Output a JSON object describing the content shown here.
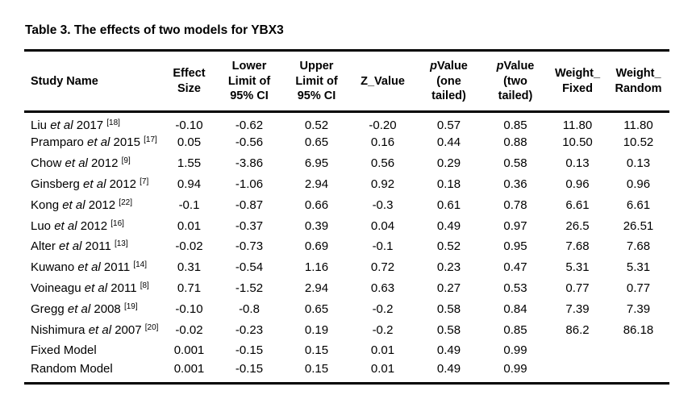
{
  "title": "Table 3. The effects of two models for YBX3",
  "colors": {
    "text": "#000000",
    "background": "#ffffff",
    "rule": "#000000"
  },
  "table": {
    "columns": [
      {
        "id": "study_name",
        "lines": [
          "Study Name"
        ],
        "align": "left"
      },
      {
        "id": "effect_size",
        "lines": [
          "Effect",
          "Size"
        ]
      },
      {
        "id": "lower_limit",
        "lines": [
          "Lower",
          "Limit of",
          "95% CI"
        ]
      },
      {
        "id": "upper_limit",
        "lines": [
          "Upper",
          "Limit of",
          "95% CI"
        ]
      },
      {
        "id": "z_value",
        "lines": [
          "Z_Value"
        ]
      },
      {
        "id": "p_one_tailed",
        "lines": [
          "pValue",
          "(one",
          "tailed)"
        ],
        "italic_lead": "p"
      },
      {
        "id": "p_two_tailed",
        "lines": [
          "pValue",
          "(two",
          "tailed)"
        ],
        "italic_lead": "p"
      },
      {
        "id": "weight_fixed",
        "lines": [
          "Weight_",
          "Fixed"
        ]
      },
      {
        "id": "weight_random",
        "lines": [
          "Weight_",
          "Random"
        ]
      }
    ],
    "rows": [
      {
        "study": {
          "name": "Liu",
          "etal": "et al",
          "year": "2017",
          "ref": "[18]"
        },
        "values": [
          "-0.10",
          "-0.62",
          "0.52",
          "-0.20",
          "0.57",
          "0.85",
          "11.80",
          "11.80"
        ]
      },
      {
        "study": {
          "name": "Pramparo",
          "etal": "et al",
          "year": "2015",
          "ref": "[17]"
        },
        "values": [
          "0.05",
          "-0.56",
          "0.65",
          "0.16",
          "0.44",
          "0.88",
          "10.50",
          "10.52"
        ]
      },
      {
        "study": {
          "name": "Chow",
          "etal": "et al",
          "year": "2012",
          "ref": "[9]"
        },
        "values": [
          "1.55",
          "-3.86",
          "6.95",
          "0.56",
          "0.29",
          "0.58",
          "0.13",
          "0.13"
        ]
      },
      {
        "study": {
          "name": "Ginsberg",
          "etal": "et al",
          "year": "2012",
          "ref": "[7]"
        },
        "values": [
          "0.94",
          "-1.06",
          "2.94",
          "0.92",
          "0.18",
          "0.36",
          "0.96",
          "0.96"
        ]
      },
      {
        "study": {
          "name": "Kong",
          "etal": "et al",
          "year": "2012",
          "ref": "[22]"
        },
        "values": [
          "-0.1",
          "-0.87",
          "0.66",
          "-0.3",
          "0.61",
          "0.78",
          "6.61",
          "6.61"
        ]
      },
      {
        "study": {
          "name": "Luo",
          "etal": "et al",
          "year": "2012",
          "ref": "[16]"
        },
        "values": [
          "0.01",
          "-0.37",
          "0.39",
          "0.04",
          "0.49",
          "0.97",
          "26.5",
          "26.51"
        ]
      },
      {
        "study": {
          "name": "Alter",
          "etal": "et al",
          "year": "2011",
          "ref": "[13]"
        },
        "values": [
          "-0.02",
          "-0.73",
          "0.69",
          "-0.1",
          "0.52",
          "0.95",
          "7.68",
          "7.68"
        ]
      },
      {
        "study": {
          "name": "Kuwano",
          "etal": "et al",
          "year": "2011",
          "ref": "[14]"
        },
        "values": [
          "0.31",
          "-0.54",
          "1.16",
          "0.72",
          "0.23",
          "0.47",
          "5.31",
          "5.31"
        ]
      },
      {
        "study": {
          "name": "Voineagu",
          "etal": "et al",
          "year": "2011",
          "ref": "[8]"
        },
        "values": [
          "0.71",
          "-1.52",
          "2.94",
          "0.63",
          "0.27",
          "0.53",
          "0.77",
          "0.77"
        ]
      },
      {
        "study": {
          "name": "Gregg",
          "etal": "et al",
          "year": "2008",
          "ref": "[19]"
        },
        "values": [
          "-0.10",
          "-0.8",
          "0.65",
          "-0.2",
          "0.58",
          "0.84",
          "7.39",
          "7.39"
        ]
      },
      {
        "study": {
          "name": "Nishimura",
          "etal": "et al",
          "year": "2007",
          "ref": "[20]"
        },
        "values": [
          "-0.02",
          "-0.23",
          "0.19",
          "-0.2",
          "0.58",
          "0.85",
          "86.2",
          "86.18"
        ]
      },
      {
        "study": {
          "name": "Fixed Model"
        },
        "values": [
          "0.001",
          "-0.15",
          "0.15",
          "0.01",
          "0.49",
          "0.99",
          "",
          ""
        ]
      },
      {
        "study": {
          "name": "Random Model"
        },
        "values": [
          "0.001",
          "-0.15",
          "0.15",
          "0.01",
          "0.49",
          "0.99",
          "",
          ""
        ]
      }
    ]
  }
}
